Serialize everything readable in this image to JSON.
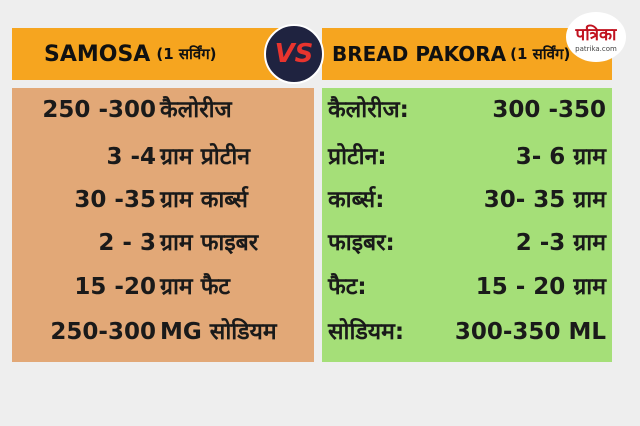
{
  "left": {
    "name": "SAMOSA",
    "serving": "(1 सर्विंग)",
    "rows": [
      {
        "amount": "250 -300",
        "label": "कैलोरीज"
      },
      {
        "amount": "3 -4",
        "label": "ग्राम प्रोटीन"
      },
      {
        "amount": "30 -35",
        "label": "ग्राम कार्ब्स"
      },
      {
        "amount": "2 - 3",
        "label": "ग्राम फाइबर"
      },
      {
        "amount": "15 -20",
        "label": "ग्राम फैट"
      },
      {
        "amount": "250-300",
        "label": "MG सोडियम"
      }
    ]
  },
  "vs": "VS",
  "right": {
    "name": "BREAD PAKORA",
    "serving": "(1 सर्विंग)",
    "rows": [
      {
        "label": "कैलोरीज:",
        "amount": "300 -350"
      },
      {
        "label": "प्रोटीन:",
        "amount": "3- 6 ग्राम"
      },
      {
        "label": "कार्ब्स:",
        "amount": "30- 35 ग्राम"
      },
      {
        "label": "फाइबर:",
        "amount": "2 -3 ग्राम"
      },
      {
        "label": "फैट:",
        "amount": "15 - 20 ग्राम"
      },
      {
        "label": "सोडियम:",
        "amount": "300-350 ML"
      }
    ]
  },
  "logo": {
    "name": "पत्रिका",
    "site": "patrika.com"
  }
}
